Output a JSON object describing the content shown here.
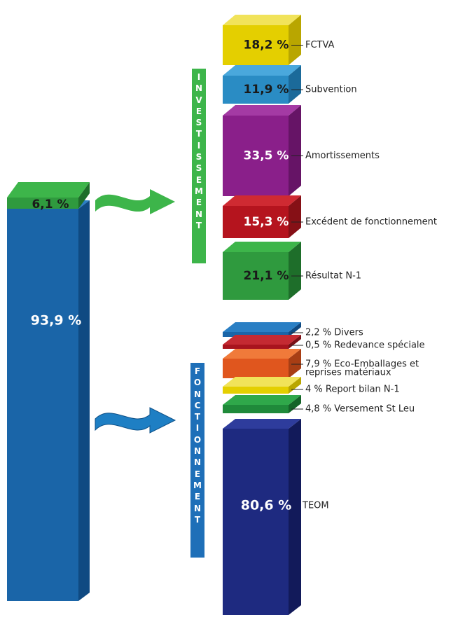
{
  "left": {
    "top_block": "6,1 %",
    "main_block": "93,9 %"
  },
  "investissement": {
    "title": "INVESTISSEMENT",
    "items": [
      {
        "value": "18,2 %",
        "label": "FCTVA"
      },
      {
        "value": "11,9 %",
        "label": "Subvention"
      },
      {
        "value": "33,5 %",
        "label": "Amortissements"
      },
      {
        "value": "15,3 %",
        "label": "Excédent de fonctionnement"
      },
      {
        "value": "21,1 %",
        "label": "Résultat N-1"
      }
    ]
  },
  "fonctionnement": {
    "title": "FONCTIONNEMENT",
    "items": [
      {
        "label": "2,2 % Divers"
      },
      {
        "label": "0,5 % Redevance spéciale"
      },
      {
        "label": [
          "7,9 % Eco-Emballages et",
          "reprises matériaux"
        ]
      },
      {
        "label": "4 % Report bilan N-1"
      },
      {
        "label": "4,8 % Versement St Leu"
      },
      {
        "value": "80,6 %",
        "label": "TEOM"
      }
    ]
  }
}
